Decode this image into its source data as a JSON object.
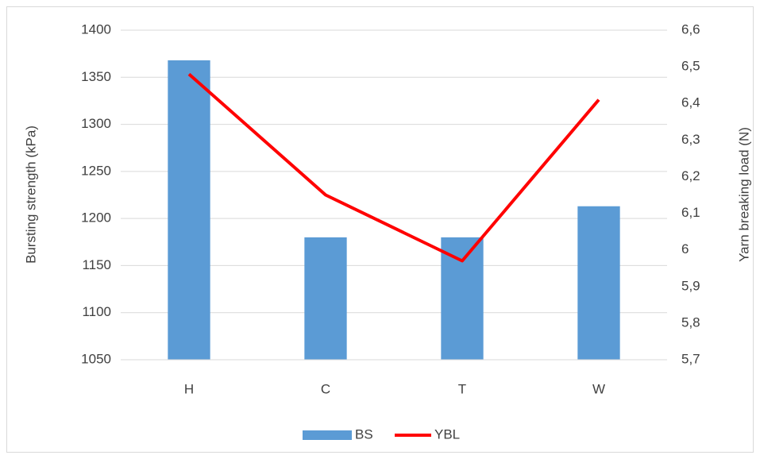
{
  "chart_data": {
    "type": "bar_line",
    "categories": [
      "H",
      "C",
      "T",
      "W"
    ],
    "series": [
      {
        "name": "BS",
        "color": "#5b9bd5",
        "type": "bar",
        "values": [
          1368,
          1180,
          1180,
          1213
        ]
      },
      {
        "name": "YBL",
        "color": "#ff0000",
        "type": "line",
        "axis": "y2",
        "values": [
          6.48,
          6.15,
          5.97,
          6.41
        ]
      }
    ],
    "y_label": "Bursting strength (kPa)",
    "y2_label": "Yarn breaking load (N)",
    "ylim": [
      1050,
      1400
    ],
    "yticks": [
      1050,
      1100,
      1150,
      1200,
      1250,
      1300,
      1350,
      1400
    ],
    "y2lim": [
      5.7,
      6.6
    ],
    "y2ticks": [
      {
        "value": 5.7,
        "label": "5,7"
      },
      {
        "value": 5.8,
        "label": "5,8"
      },
      {
        "value": 5.9,
        "label": "5,9"
      },
      6,
      {
        "value": 6.1,
        "label": "6,1"
      },
      {
        "value": 6.2,
        "label": "6,2"
      },
      {
        "value": 6.3,
        "label": "6,3"
      },
      {
        "value": 6.4,
        "label": "6,4"
      },
      {
        "value": 6.5,
        "label": "6,5"
      },
      {
        "value": 6.6,
        "label": "6,6"
      }
    ],
    "grid": true,
    "legend": "bottom"
  }
}
